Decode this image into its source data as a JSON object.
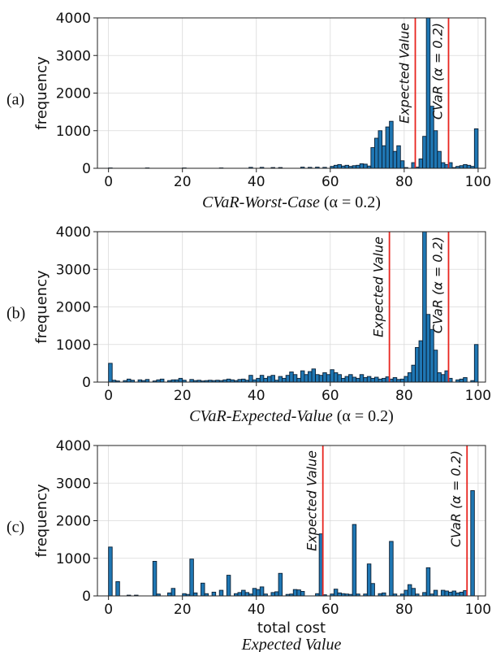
{
  "chart_data": [
    {
      "type": "bar",
      "panel_label": "(a)",
      "ylabel": "frequency",
      "caption_italic": "CVaR-Worst-Case",
      "caption_rest": "(α = 0.2)",
      "xlabel": "",
      "xlim": [
        -3,
        102
      ],
      "ylim": [
        0,
        4000
      ],
      "xticks": [
        0,
        20,
        40,
        60,
        80,
        100
      ],
      "yticks": [
        0,
        1000,
        2000,
        3000,
        4000
      ],
      "grid": true,
      "bar_color": "#1f77b4",
      "bin_width": 1,
      "bins": [
        [
          0,
          10
        ],
        [
          10,
          10
        ],
        [
          20,
          10
        ],
        [
          30,
          10
        ],
        [
          38,
          25
        ],
        [
          41,
          25
        ],
        [
          44,
          20
        ],
        [
          46,
          20
        ],
        [
          52,
          30
        ],
        [
          54,
          25
        ],
        [
          56,
          30
        ],
        [
          58,
          25
        ],
        [
          60,
          50
        ],
        [
          61,
          80
        ],
        [
          62,
          100
        ],
        [
          63,
          60
        ],
        [
          64,
          80
        ],
        [
          65,
          50
        ],
        [
          66,
          70
        ],
        [
          67,
          80
        ],
        [
          68,
          120
        ],
        [
          69,
          110
        ],
        [
          70,
          60
        ],
        [
          71,
          550
        ],
        [
          72,
          800
        ],
        [
          73,
          1000
        ],
        [
          74,
          600
        ],
        [
          75,
          1100
        ],
        [
          76,
          1250
        ],
        [
          77,
          450
        ],
        [
          78,
          600
        ],
        [
          79,
          200
        ],
        [
          80,
          20
        ],
        [
          82,
          150
        ],
        [
          83,
          30
        ],
        [
          84,
          250
        ],
        [
          85,
          850
        ],
        [
          86,
          4100
        ],
        [
          87,
          1650
        ],
        [
          88,
          1000
        ],
        [
          89,
          450
        ],
        [
          90,
          150
        ],
        [
          91,
          100
        ],
        [
          92,
          150
        ],
        [
          93,
          20
        ],
        [
          94,
          50
        ],
        [
          95,
          70
        ],
        [
          96,
          100
        ],
        [
          97,
          80
        ],
        [
          98,
          50
        ],
        [
          99,
          1050
        ]
      ],
      "vlines": [
        {
          "x": 83,
          "label": "Expected Value",
          "color": "#e8251f"
        },
        {
          "x": 92,
          "label": "CVaR (α = 0.2)",
          "color": "#e8251f"
        }
      ]
    },
    {
      "type": "bar",
      "panel_label": "(b)",
      "ylabel": "frequency",
      "caption_italic": "CVaR-Expected-Value",
      "caption_rest": "(α = 0.2)",
      "xlabel": "",
      "xlim": [
        -3,
        102
      ],
      "ylim": [
        0,
        4000
      ],
      "xticks": [
        0,
        20,
        40,
        60,
        80,
        100
      ],
      "yticks": [
        0,
        1000,
        2000,
        3000,
        4000
      ],
      "grid": true,
      "bar_color": "#1f77b4",
      "bin_width": 1,
      "bins": [
        [
          0,
          500
        ],
        [
          1,
          50
        ],
        [
          2,
          30
        ],
        [
          4,
          40
        ],
        [
          5,
          80
        ],
        [
          6,
          50
        ],
        [
          8,
          60
        ],
        [
          9,
          40
        ],
        [
          10,
          70
        ],
        [
          12,
          30
        ],
        [
          13,
          60
        ],
        [
          14,
          80
        ],
        [
          16,
          40
        ],
        [
          17,
          60
        ],
        [
          18,
          60
        ],
        [
          19,
          100
        ],
        [
          20,
          50
        ],
        [
          22,
          70
        ],
        [
          23,
          40
        ],
        [
          24,
          50
        ],
        [
          25,
          30
        ],
        [
          26,
          40
        ],
        [
          27,
          50
        ],
        [
          28,
          40
        ],
        [
          29,
          50
        ],
        [
          30,
          40
        ],
        [
          31,
          60
        ],
        [
          32,
          80
        ],
        [
          33,
          60
        ],
        [
          34,
          40
        ],
        [
          35,
          70
        ],
        [
          36,
          80
        ],
        [
          37,
          50
        ],
        [
          38,
          180
        ],
        [
          39,
          60
        ],
        [
          40,
          100
        ],
        [
          41,
          180
        ],
        [
          42,
          100
        ],
        [
          43,
          150
        ],
        [
          44,
          180
        ],
        [
          45,
          50
        ],
        [
          46,
          150
        ],
        [
          47,
          100
        ],
        [
          48,
          180
        ],
        [
          49,
          270
        ],
        [
          50,
          200
        ],
        [
          51,
          100
        ],
        [
          52,
          300
        ],
        [
          53,
          200
        ],
        [
          54,
          280
        ],
        [
          55,
          350
        ],
        [
          56,
          200
        ],
        [
          57,
          180
        ],
        [
          58,
          250
        ],
        [
          59,
          200
        ],
        [
          60,
          330
        ],
        [
          61,
          250
        ],
        [
          62,
          200
        ],
        [
          63,
          100
        ],
        [
          64,
          150
        ],
        [
          65,
          200
        ],
        [
          66,
          130
        ],
        [
          67,
          100
        ],
        [
          68,
          200
        ],
        [
          69,
          120
        ],
        [
          70,
          150
        ],
        [
          71,
          100
        ],
        [
          72,
          130
        ],
        [
          73,
          80
        ],
        [
          74,
          100
        ],
        [
          75,
          140
        ],
        [
          76,
          80
        ],
        [
          77,
          120
        ],
        [
          78,
          70
        ],
        [
          79,
          80
        ],
        [
          80,
          150
        ],
        [
          81,
          250
        ],
        [
          82,
          450
        ],
        [
          83,
          920
        ],
        [
          84,
          1100
        ],
        [
          85,
          4050
        ],
        [
          86,
          1800
        ],
        [
          87,
          1400
        ],
        [
          88,
          850
        ],
        [
          89,
          250
        ],
        [
          90,
          200
        ],
        [
          91,
          300
        ],
        [
          92,
          100
        ],
        [
          94,
          60
        ],
        [
          95,
          80
        ],
        [
          96,
          120
        ],
        [
          98,
          40
        ],
        [
          99,
          1000
        ]
      ],
      "vlines": [
        {
          "x": 76,
          "label": "Expected Value",
          "color": "#e8251f"
        },
        {
          "x": 92,
          "label": "CVaR (α = 0.2)",
          "color": "#e8251f"
        }
      ]
    },
    {
      "type": "bar",
      "panel_label": "(c)",
      "ylabel": "frequency",
      "caption_italic": "Expected Value",
      "caption_rest": "",
      "xlabel": "total cost",
      "xlim": [
        -3,
        102
      ],
      "ylim": [
        0,
        4000
      ],
      "xticks": [
        0,
        20,
        40,
        60,
        80,
        100
      ],
      "yticks": [
        0,
        1000,
        2000,
        3000,
        4000
      ],
      "grid": true,
      "bar_color": "#1f77b4",
      "bin_width": 1,
      "bins": [
        [
          0,
          1300
        ],
        [
          2,
          380
        ],
        [
          5,
          20
        ],
        [
          7,
          20
        ],
        [
          12,
          920
        ],
        [
          13,
          50
        ],
        [
          16,
          80
        ],
        [
          17,
          200
        ],
        [
          20,
          60
        ],
        [
          21,
          40
        ],
        [
          22,
          980
        ],
        [
          23,
          80
        ],
        [
          25,
          340
        ],
        [
          26,
          60
        ],
        [
          28,
          100
        ],
        [
          30,
          150
        ],
        [
          32,
          550
        ],
        [
          34,
          60
        ],
        [
          35,
          90
        ],
        [
          36,
          150
        ],
        [
          37,
          90
        ],
        [
          38,
          50
        ],
        [
          39,
          200
        ],
        [
          40,
          170
        ],
        [
          41,
          240
        ],
        [
          42,
          50
        ],
        [
          44,
          90
        ],
        [
          45,
          110
        ],
        [
          46,
          600
        ],
        [
          48,
          40
        ],
        [
          49,
          50
        ],
        [
          50,
          170
        ],
        [
          51,
          160
        ],
        [
          52,
          120
        ],
        [
          56,
          60
        ],
        [
          57,
          1650
        ],
        [
          58,
          30
        ],
        [
          60,
          50
        ],
        [
          61,
          180
        ],
        [
          62,
          80
        ],
        [
          63,
          60
        ],
        [
          64,
          50
        ],
        [
          65,
          40
        ],
        [
          66,
          1900
        ],
        [
          67,
          50
        ],
        [
          69,
          50
        ],
        [
          70,
          850
        ],
        [
          71,
          330
        ],
        [
          73,
          60
        ],
        [
          74,
          80
        ],
        [
          76,
          1450
        ],
        [
          77,
          50
        ],
        [
          79,
          50
        ],
        [
          80,
          150
        ],
        [
          81,
          300
        ],
        [
          82,
          200
        ],
        [
          83,
          50
        ],
        [
          85,
          90
        ],
        [
          86,
          750
        ],
        [
          87,
          50
        ],
        [
          88,
          150
        ],
        [
          90,
          150
        ],
        [
          91,
          130
        ],
        [
          92,
          100
        ],
        [
          93,
          130
        ],
        [
          94,
          80
        ],
        [
          95,
          100
        ],
        [
          96,
          140
        ],
        [
          98,
          2800
        ]
      ],
      "vlines": [
        {
          "x": 58,
          "label": "Expected Value",
          "color": "#e8251f"
        },
        {
          "x": 97,
          "label": "CVaR (α = 0.2)",
          "color": "#e8251f"
        }
      ]
    }
  ]
}
